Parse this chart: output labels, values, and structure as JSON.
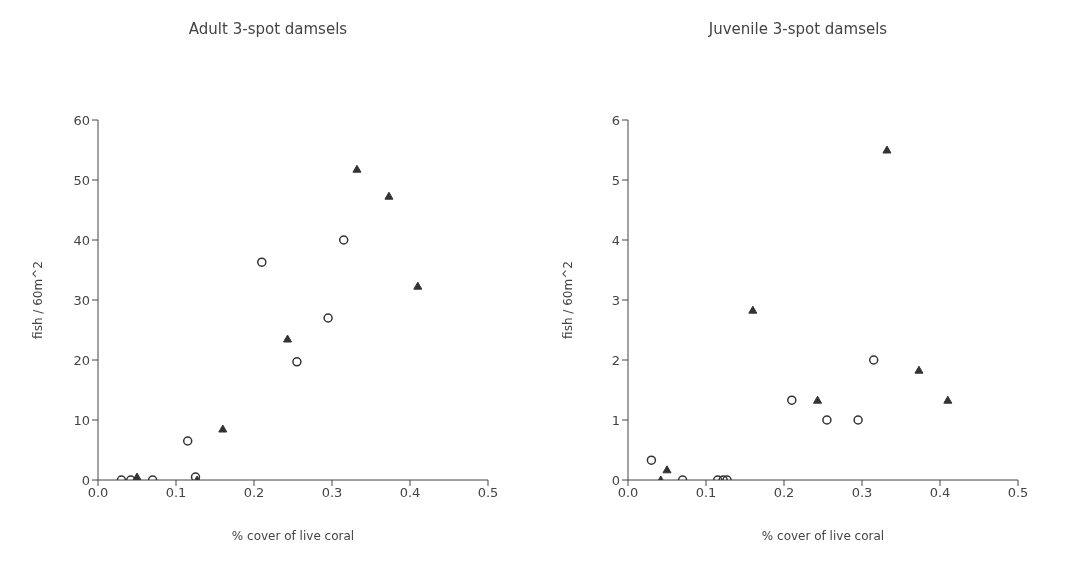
{
  "chart_data": [
    {
      "type": "scatter",
      "title": "Adult 3-spot damsels",
      "xlabel": "% cover of live coral",
      "ylabel": "fish / 60m^2",
      "xlim": [
        0,
        0.5
      ],
      "xticks": [
        {
          "value": 0,
          "label": "0.0"
        },
        0.1,
        0.2,
        0.3,
        0.4,
        0.5
      ],
      "ylim": [
        0,
        60
      ],
      "yticks": [
        0,
        10,
        20,
        30,
        40,
        50,
        60
      ],
      "grid": false,
      "legend": false,
      "series": [
        {
          "color": "#333333",
          "marker": "circle",
          "x": [
            0.03,
            0.042,
            0.07,
            0.115,
            0.125,
            0.21,
            0.255,
            0.295,
            0.315
          ],
          "values": [
            0,
            0,
            0,
            6.5,
            0.5,
            36.3,
            19.7,
            27,
            40
          ]
        },
        {
          "color": "#333333",
          "marker": "triangle",
          "x": [
            0.05,
            0.127,
            0.16,
            0.243,
            0.332,
            0.373,
            0.41
          ],
          "values": [
            0.5,
            0,
            8.5,
            23.5,
            51.8,
            47.3,
            32.3
          ]
        }
      ]
    },
    {
      "type": "scatter",
      "title": "Juvenile 3-spot damsels",
      "xlabel": "% cover of live coral",
      "ylabel": "fish / 60m^2",
      "xlim": [
        0,
        0.5
      ],
      "xticks": [
        {
          "value": 0,
          "label": "0.0"
        },
        0.1,
        0.2,
        0.3,
        0.4,
        0.5
      ],
      "ylim": [
        0,
        6
      ],
      "yticks": [
        0,
        1,
        2,
        3,
        4,
        5,
        6
      ],
      "grid": false,
      "legend": false,
      "series": [
        {
          "color": "#333333",
          "marker": "circle",
          "x": [
            0.03,
            0.07,
            0.115,
            0.122,
            0.127,
            0.21,
            0.255,
            0.295,
            0.315
          ],
          "values": [
            0.33,
            0,
            0,
            0,
            0,
            1.33,
            1,
            1,
            2
          ]
        },
        {
          "color": "#333333",
          "marker": "triangle",
          "x": [
            0.042,
            0.05,
            0.16,
            0.243,
            0.332,
            0.373,
            0.41
          ],
          "values": [
            0,
            0.17,
            2.83,
            1.33,
            5.5,
            1.83,
            1.33
          ]
        }
      ]
    }
  ]
}
